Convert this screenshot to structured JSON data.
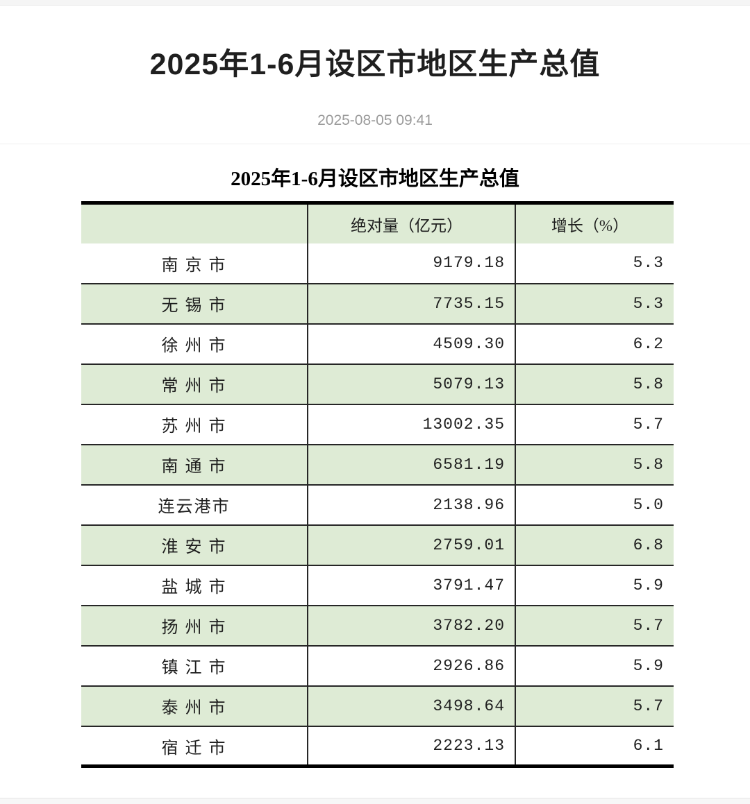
{
  "page": {
    "title": "2025年1-6月设区市地区生产总值",
    "publish_date": "2025-08-05 09:41"
  },
  "colors": {
    "row_alt_green": "#deebd5",
    "border_dark": "#262626",
    "thick_border": "#000000",
    "date_gray": "#9b9b9b"
  },
  "table": {
    "caption": "2025年1-6月设区市地区生产总值",
    "columns": [
      "",
      "绝对量（亿元）",
      "增长（%）"
    ],
    "rows": [
      {
        "city": "南 京 市",
        "value": "9179.18",
        "growth": "5.3"
      },
      {
        "city": "无 锡 市",
        "value": "7735.15",
        "growth": "5.3"
      },
      {
        "city": "徐 州 市",
        "value": "4509.30",
        "growth": "6.2"
      },
      {
        "city": "常 州 市",
        "value": "5079.13",
        "growth": "5.8"
      },
      {
        "city": "苏 州 市",
        "value": "13002.35",
        "growth": "5.7"
      },
      {
        "city": "南 通 市",
        "value": "6581.19",
        "growth": "5.8"
      },
      {
        "city": "连云港市",
        "value": "2138.96",
        "growth": "5.0"
      },
      {
        "city": "淮 安 市",
        "value": "2759.01",
        "growth": "6.8"
      },
      {
        "city": "盐 城 市",
        "value": "3791.47",
        "growth": "5.9"
      },
      {
        "city": "扬 州 市",
        "value": "3782.20",
        "growth": "5.7"
      },
      {
        "city": "镇 江 市",
        "value": "2926.86",
        "growth": "5.9"
      },
      {
        "city": "泰 州 市",
        "value": "3498.64",
        "growth": "5.7"
      },
      {
        "city": "宿 迁 市",
        "value": "2223.13",
        "growth": "6.1"
      }
    ]
  }
}
